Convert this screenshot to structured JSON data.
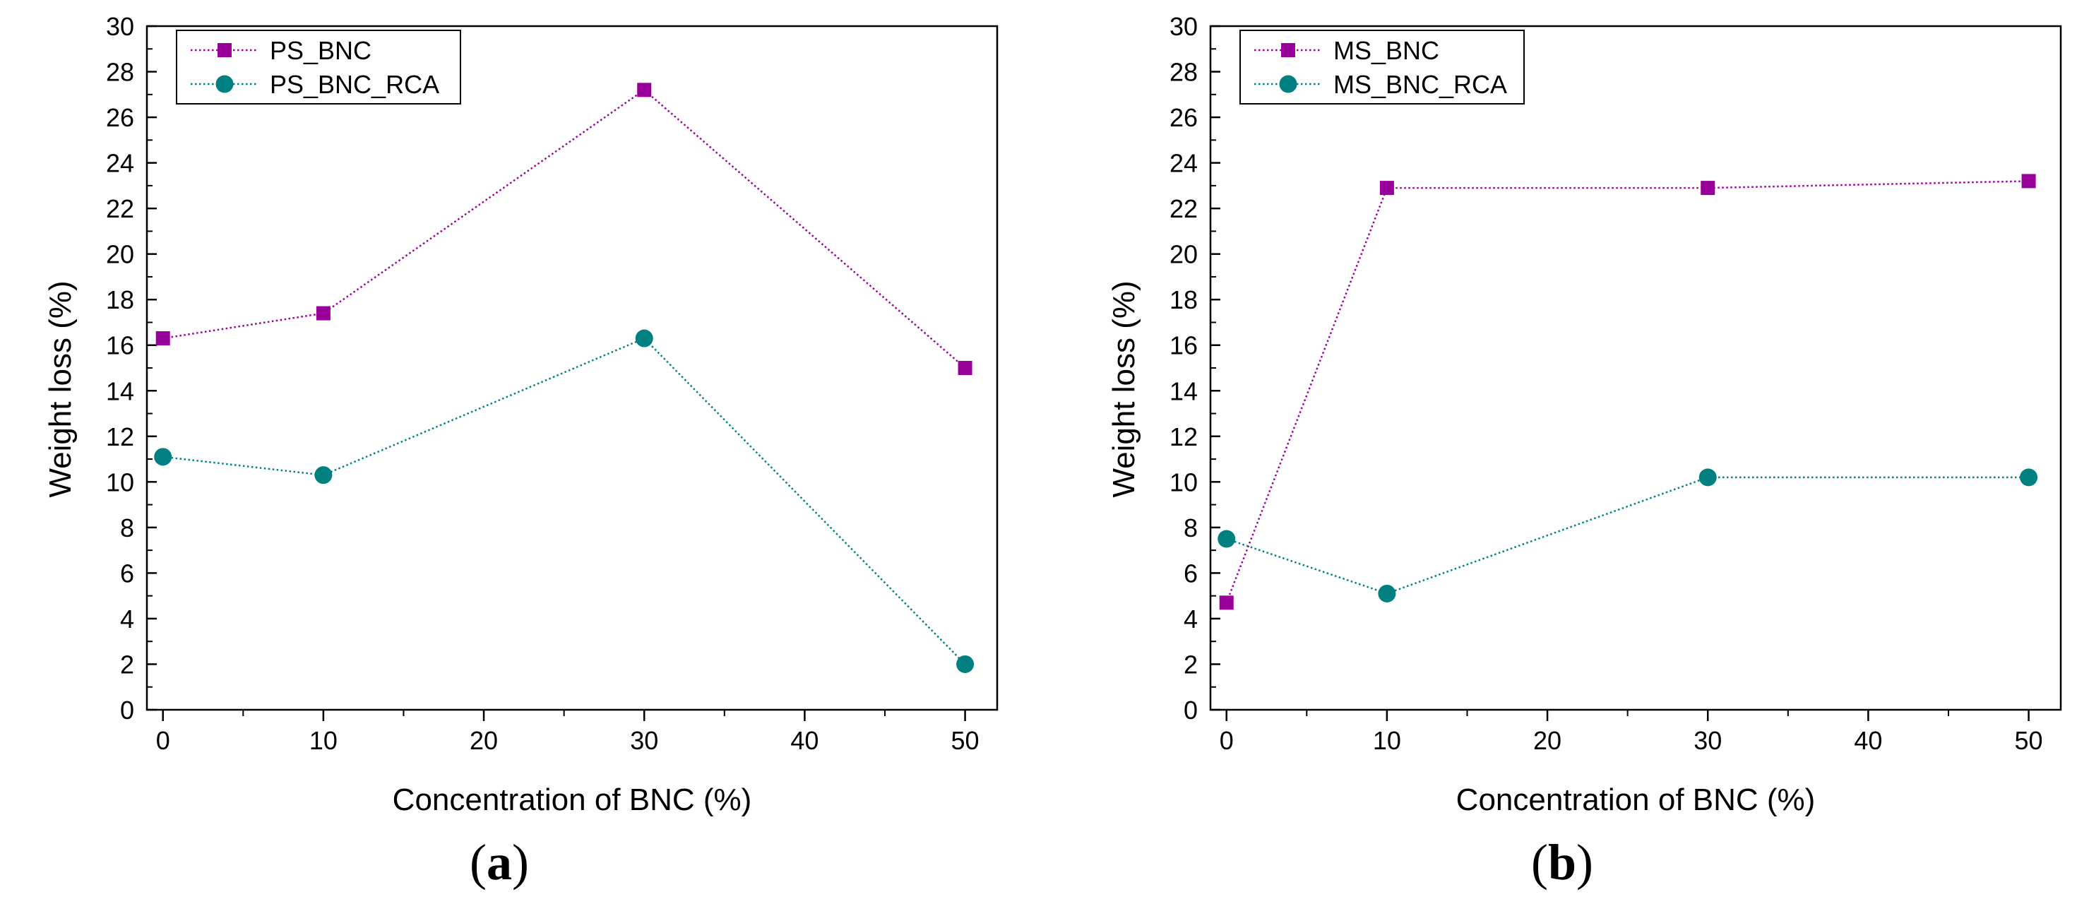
{
  "figure": {
    "panels": [
      {
        "label_open": "(",
        "label_letter": "a",
        "label_close": ")"
      },
      {
        "label_open": "(",
        "label_letter": "b",
        "label_close": ")"
      }
    ]
  },
  "chart_data": [
    {
      "type": "line",
      "title": "",
      "xlabel": "Concentration of BNC (%)",
      "ylabel": "Weight loss (%)",
      "xlim": [
        -1,
        52
      ],
      "ylim": [
        0,
        30
      ],
      "xticks": [
        0,
        10,
        20,
        30,
        40,
        50
      ],
      "yticks": [
        0,
        2,
        4,
        6,
        8,
        10,
        12,
        14,
        16,
        18,
        20,
        22,
        24,
        26,
        28,
        30
      ],
      "legend_position": "top-left",
      "series": [
        {
          "name": "PS_BNC",
          "marker": "square",
          "color": "#990099",
          "x": [
            0,
            10,
            30,
            50
          ],
          "values": [
            16.3,
            17.4,
            27.2,
            15.0
          ]
        },
        {
          "name": "PS_BNC_RCA",
          "marker": "circle",
          "color": "#008080",
          "x": [
            0,
            10,
            30,
            50
          ],
          "values": [
            11.1,
            10.3,
            16.3,
            2.0
          ]
        }
      ]
    },
    {
      "type": "line",
      "title": "",
      "xlabel": "Concentration of BNC (%)",
      "ylabel": "Weight loss (%)",
      "xlim": [
        -1,
        52
      ],
      "ylim": [
        0,
        30
      ],
      "xticks": [
        0,
        10,
        20,
        30,
        40,
        50
      ],
      "yticks": [
        0,
        2,
        4,
        6,
        8,
        10,
        12,
        14,
        16,
        18,
        20,
        22,
        24,
        26,
        28,
        30
      ],
      "legend_position": "top-left",
      "series": [
        {
          "name": "MS_BNC",
          "marker": "square",
          "color": "#990099",
          "x": [
            0,
            10,
            30,
            50
          ],
          "values": [
            4.7,
            22.9,
            22.9,
            23.2
          ]
        },
        {
          "name": "MS_BNC_RCA",
          "marker": "circle",
          "color": "#008080",
          "x": [
            0,
            10,
            30,
            50
          ],
          "values": [
            7.5,
            5.1,
            10.2,
            10.2
          ]
        }
      ]
    }
  ]
}
